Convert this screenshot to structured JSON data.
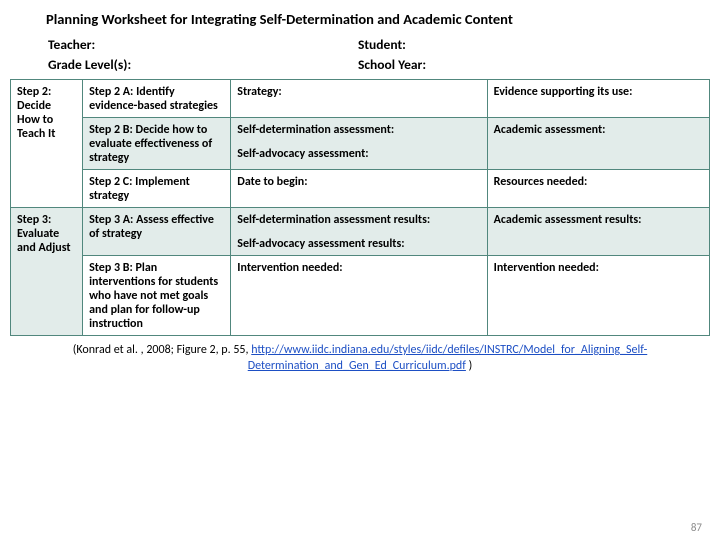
{
  "title": "Planning Worksheet for Integrating Self-Determination and Academic Content",
  "meta": {
    "teacher_label": "Teacher:",
    "student_label": "Student:",
    "grade_label": "Grade Level(s):",
    "year_label": "School Year:"
  },
  "table": {
    "step2_label": "Step 2: Decide How to Teach It",
    "step2a": "Step 2 A: Identify evidence-based strategies",
    "step2a_mid": "Strategy:",
    "step2a_right": "Evidence supporting its use:",
    "step2b": "Step 2 B: Decide how to evaluate effectiveness of strategy",
    "step2b_mid1": "Self-determination assessment:",
    "step2b_mid2": "Self-advocacy assessment:",
    "step2b_right": "Academic assessment:",
    "step2c": "Step 2 C: Implement strategy",
    "step2c_mid": "Date to begin:",
    "step2c_right": "Resources needed:",
    "step3_label": "Step 3: Evaluate and Adjust",
    "step3a": "Step 3 A: Assess effective of strategy",
    "step3a_mid1": "Self-determination assessment results:",
    "step3a_mid2": "Self-advocacy assessment results:",
    "step3a_right": "Academic assessment results:",
    "step3b": "Step 3 B: Plan interventions for students who have not met goals and plan for follow-up instruction",
    "step3b_mid": "Intervention needed:",
    "step3b_right": "Intervention needed:"
  },
  "citation": {
    "prefix": "(Konrad et al. , 2008; Figure 2, p. 55, ",
    "link_text": "http://www.iidc.indiana.edu/styles/iidc/defiles/INSTRC/Model_for_Aligning_Self-Determination_and_Gen_Ed_Curriculum.pdf",
    "suffix": " )"
  },
  "page_number": "87",
  "colors": {
    "border": "#51877d",
    "tint_bg": "#e2ecea",
    "link": "#1d4fc4",
    "pagenum": "#8a8a8a"
  }
}
